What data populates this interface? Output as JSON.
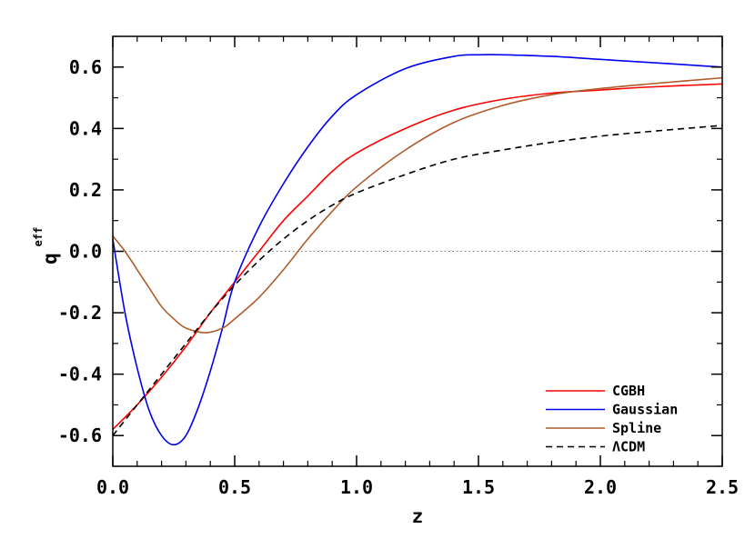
{
  "chart_data": {
    "type": "line",
    "xlabel": "z",
    "ylabel": "q",
    "ylabel_superscript": "eff",
    "xlim": [
      0.0,
      2.5
    ],
    "ylim": [
      -0.7,
      0.7
    ],
    "x_ticks": [
      "0.0",
      "0.5",
      "1.0",
      "1.5",
      "2.0",
      "2.5"
    ],
    "y_ticks": [
      "-0.6",
      "-0.4",
      "-0.2",
      "0.0",
      "0.2",
      "0.4",
      "0.6"
    ],
    "reference_line": {
      "y": 0.0,
      "style": "dotted",
      "color": "#777777"
    },
    "legend_position": "bottom-right",
    "series": [
      {
        "name": "CGBH",
        "color": "#ff0000",
        "style": "solid",
        "x": [
          0.0,
          0.1,
          0.2,
          0.3,
          0.4,
          0.5,
          0.6,
          0.7,
          0.8,
          0.9,
          1.0,
          1.2,
          1.4,
          1.6,
          1.8,
          2.0,
          2.2,
          2.5
        ],
        "y": [
          -0.58,
          -0.5,
          -0.41,
          -0.31,
          -0.2,
          -0.1,
          0.0,
          0.1,
          0.18,
          0.26,
          0.32,
          0.4,
          0.46,
          0.495,
          0.515,
          0.525,
          0.535,
          0.545
        ]
      },
      {
        "name": "Gaussian",
        "color": "#0000ee",
        "style": "solid",
        "x": [
          0.0,
          0.05,
          0.1,
          0.15,
          0.2,
          0.25,
          0.3,
          0.35,
          0.4,
          0.45,
          0.5,
          0.6,
          0.7,
          0.8,
          0.9,
          1.0,
          1.2,
          1.4,
          1.5,
          1.6,
          1.8,
          2.0,
          2.2,
          2.5
        ],
        "y": [
          0.04,
          -0.2,
          -0.38,
          -0.52,
          -0.6,
          -0.63,
          -0.6,
          -0.51,
          -0.39,
          -0.25,
          -0.1,
          0.08,
          0.22,
          0.34,
          0.44,
          0.51,
          0.595,
          0.635,
          0.64,
          0.64,
          0.635,
          0.625,
          0.615,
          0.6
        ]
      },
      {
        "name": "Spline",
        "color": "#b05a2a",
        "style": "solid",
        "x": [
          0.0,
          0.05,
          0.1,
          0.15,
          0.2,
          0.25,
          0.3,
          0.38,
          0.45,
          0.5,
          0.6,
          0.7,
          0.8,
          0.9,
          1.0,
          1.2,
          1.4,
          1.6,
          1.8,
          2.0,
          2.2,
          2.5
        ],
        "y": [
          0.05,
          0.0,
          -0.06,
          -0.12,
          -0.18,
          -0.22,
          -0.25,
          -0.265,
          -0.25,
          -0.22,
          -0.15,
          -0.06,
          0.04,
          0.13,
          0.21,
          0.33,
          0.42,
          0.475,
          0.51,
          0.53,
          0.545,
          0.565
        ]
      },
      {
        "name": "ΛCDM",
        "color": "#000000",
        "style": "dashed",
        "x": [
          0.0,
          0.1,
          0.2,
          0.3,
          0.4,
          0.5,
          0.6,
          0.7,
          0.8,
          0.9,
          1.0,
          1.2,
          1.4,
          1.6,
          1.8,
          2.0,
          2.2,
          2.5
        ],
        "y": [
          -0.6,
          -0.5,
          -0.4,
          -0.3,
          -0.2,
          -0.11,
          -0.03,
          0.04,
          0.1,
          0.15,
          0.19,
          0.25,
          0.3,
          0.33,
          0.355,
          0.375,
          0.39,
          0.41
        ]
      }
    ]
  }
}
